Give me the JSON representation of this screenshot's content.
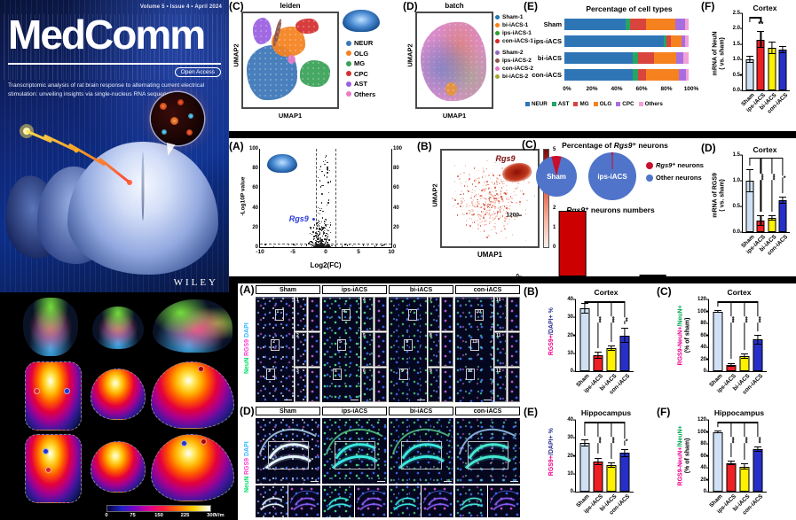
{
  "cover": {
    "issue_info": "Volume 5 • Issue 4 • April 2024",
    "journal_title": "MedComm",
    "open_access_badge": "Open Access",
    "subtitle": "Transcriptomic analysis of rat brain response to alternating current electrical stimulation: unveiling insights via single-nucleus RNA sequencing",
    "publisher": "WILEY"
  },
  "efield_scale": {
    "ticks": [
      "0",
      "75",
      "150",
      "225",
      "300"
    ],
    "unit": "V/m"
  },
  "microscopy": {
    "cortex": {
      "panel": "(A)",
      "stain_parts": [
        {
          "text": "NeuN",
          "color": "#00e06a"
        },
        {
          "text": "/",
          "color": "#f0f0f0"
        },
        {
          "text": "RGS9",
          "color": "#ff3dd4"
        },
        {
          "text": "/",
          "color": "#f0f0f0"
        },
        {
          "text": "DAPI",
          "color": "#35b6ff"
        }
      ],
      "groups": [
        {
          "name": "Sham",
          "boxes": [
            "1",
            "2",
            "3"
          ]
        },
        {
          "name": "ips-iACS",
          "boxes": [
            "4",
            "5",
            "6"
          ]
        },
        {
          "name": "bi-iACS",
          "boxes": [
            "7",
            "8",
            "9"
          ]
        },
        {
          "name": "con-iACS",
          "boxes": [
            "10",
            "11",
            "12"
          ]
        }
      ]
    },
    "hippocampus": {
      "panel": "(D)",
      "stain_parts": [
        {
          "text": "NeuN",
          "color": "#00e06a"
        },
        {
          "text": "/",
          "color": "#f0f0f0"
        },
        {
          "text": "RGS9",
          "color": "#ff3dd4"
        },
        {
          "text": "/",
          "color": "#f0f0f0"
        },
        {
          "text": "DAPI",
          "color": "#35b6ff"
        }
      ],
      "groups": [
        {
          "name": "Sham"
        },
        {
          "name": "ips-iACS"
        },
        {
          "name": "bi-iACS"
        },
        {
          "name": "con-iACS"
        }
      ]
    }
  },
  "chart_data": [
    {
      "id": "umap_leiden",
      "panel": "(C)",
      "type": "scatter",
      "title": "leiden",
      "xlabel": "UMAP1",
      "ylabel": "UMAP2",
      "legend": [
        {
          "label": "NEUR",
          "color": "#3b76b8"
        },
        {
          "label": "OLG",
          "color": "#f5821f"
        },
        {
          "label": "MG",
          "color": "#39a257"
        },
        {
          "label": "CPC",
          "color": "#d62f2f"
        },
        {
          "label": "AST",
          "color": "#9a5fe0"
        },
        {
          "label": "Others",
          "color": "#e87cc7"
        }
      ]
    },
    {
      "id": "umap_batch",
      "panel": "(D)",
      "type": "scatter",
      "title": "batch",
      "xlabel": "UMAP1",
      "ylabel": "UMAP2",
      "legend": [
        {
          "label": "Sham-1",
          "color": "#1f77b4"
        },
        {
          "label": "bi-iACS-1",
          "color": "#ff7f0e"
        },
        {
          "label": "ips-iACS-1",
          "color": "#2ca02c"
        },
        {
          "label": "con-iACS-1",
          "color": "#d62728"
        },
        {
          "label": "Sham-2",
          "color": "#9467bd",
          "gap": true
        },
        {
          "label": "ips-iACS-2",
          "color": "#8c564b"
        },
        {
          "label": "con-iACS-2",
          "color": "#e377c2"
        },
        {
          "label": "bi-iACS-2",
          "color": "#a8a832"
        }
      ]
    },
    {
      "id": "cell_types",
      "panel": "(E)",
      "type": "bar",
      "orientation": "horizontal",
      "stacked": true,
      "title": "Percentage of cell types",
      "categories": [
        "Sham",
        "ips-iACS",
        "bi-iACS",
        "con-iACS"
      ],
      "series": [
        {
          "name": "NEUR",
          "color": "#2e75b6",
          "values": [
            49,
            80,
            55,
            55
          ]
        },
        {
          "name": "AST",
          "color": "#27a567",
          "values": [
            4,
            2,
            4,
            4
          ]
        },
        {
          "name": "MG",
          "color": "#d9443c",
          "values": [
            13,
            4,
            13,
            7
          ]
        },
        {
          "name": "OLG",
          "color": "#f6821f",
          "values": [
            23,
            8,
            18,
            26
          ]
        },
        {
          "name": "CPC",
          "color": "#a86ee0",
          "values": [
            8,
            3,
            6,
            6
          ]
        },
        {
          "name": "Others",
          "color": "#f2a0d8",
          "values": [
            3,
            3,
            4,
            2
          ]
        }
      ],
      "xticks": [
        "0%",
        "20%",
        "40%",
        "60%",
        "80%",
        "100%"
      ],
      "xlim": [
        0,
        100
      ]
    },
    {
      "id": "neun_cortex",
      "panel": "(F)",
      "type": "bar",
      "title": "Cortex",
      "ylab_lines": [
        [
          {
            "text": "mRNA of NeuN"
          }
        ],
        [
          {
            "text": "( vs. sham)"
          }
        ]
      ],
      "categories": [
        "Sham",
        "ips-iACS",
        "bi-iACS",
        "con-iACS"
      ],
      "values": [
        1.0,
        1.65,
        1.37,
        1.32
      ],
      "errors": [
        0.12,
        0.28,
        0.2,
        0.12
      ],
      "colors": [
        "#cfe0f4",
        "#ed2024",
        "#fff100",
        "#2630c8"
      ],
      "sig": [
        "",
        "**",
        "",
        ""
      ],
      "bracket": "pair",
      "ylim": [
        0,
        2.5
      ],
      "yticks": [
        "0.0",
        "0.5",
        "1.0",
        "1.5",
        "2.0",
        "2.5"
      ]
    },
    {
      "id": "volcano",
      "panel": "(A)",
      "type": "scatter",
      "xlabel": "Log2(FC)",
      "ylabel": "-Log10P value",
      "xticks": [
        "-10",
        "-5",
        "0",
        "5",
        "10"
      ],
      "xlim": [
        -10,
        10
      ],
      "yticks": [
        "0",
        "20",
        "40",
        "60",
        "80",
        "100"
      ],
      "ylim": [
        0,
        100
      ],
      "annotation": {
        "text": "Rgs9",
        "italic": true,
        "color": "#2a3bd8",
        "x": -2,
        "y": 27
      }
    },
    {
      "id": "rgs9_umap",
      "panel": "(B)",
      "type": "scatter",
      "xlabel": "UMAP1",
      "ylabel": "UMAP2",
      "annotation": {
        "text": "Rgs9",
        "italic": true,
        "color": "#7a0c0c"
      },
      "colorbar": {
        "ticks": [
          "0",
          "1",
          "2",
          "3",
          "4",
          "5"
        ],
        "low": "#f8f1ed",
        "high": "#67000d"
      }
    },
    {
      "id": "rgs9_pies",
      "panel": "(C)",
      "type": "pie",
      "title_parts": [
        {
          "text": "Percentage of "
        },
        {
          "text": "Rgs9",
          "italic": true
        },
        {
          "text": "⁺ neurons"
        }
      ],
      "pies": [
        {
          "label": "Sham",
          "rgs9_pct": 8
        },
        {
          "label": "ips-iACS",
          "rgs9_pct": 1
        }
      ],
      "slice_colors": {
        "rgs9": "#c8102e",
        "other": "#4f74c9"
      },
      "legend": [
        {
          "label_parts": [
            {
              "text": "Rgs9",
              "italic": true
            },
            {
              "text": "⁺ neurons"
            }
          ],
          "color": "#c8102e"
        },
        {
          "label_parts": [
            {
              "text": "Other neurons"
            }
          ],
          "color": "#4f74c9"
        }
      ]
    },
    {
      "id": "rgs9_numbers",
      "type": "bar",
      "title_parts": [
        {
          "text": "Rgs9",
          "italic": true
        },
        {
          "text": "⁺ neurons numbers"
        }
      ],
      "categories": [
        "Sham",
        "ips-iACS"
      ],
      "values": [
        1300,
        15
      ],
      "colors": [
        "#cc0000",
        "#cc0000"
      ],
      "ylim": [
        0,
        1400
      ],
      "yticks": [
        "0",
        "1200"
      ],
      "flat_cats": true
    },
    {
      "id": "rgs9_cortex_mrna",
      "panel": "(D)",
      "type": "bar",
      "title": "Cortex",
      "ylab_lines": [
        [
          {
            "text": "mRNA of RGS9"
          }
        ],
        [
          {
            "text": "( vs. sham)"
          }
        ]
      ],
      "categories": [
        "Sham",
        "ips-iACS",
        "bi-iACS",
        "con-iACS"
      ],
      "values": [
        1.0,
        0.22,
        0.28,
        0.62
      ],
      "errors": [
        0.22,
        0.1,
        0.05,
        0.07
      ],
      "colors": [
        "#cfe0f4",
        "#ed2024",
        "#fff100",
        "#2630c8"
      ],
      "sig": [
        "",
        "***",
        "***",
        "*"
      ],
      "bracket": "fan",
      "ylim": [
        0,
        1.5
      ],
      "yticks": [
        "0.0",
        "0.5",
        "1.0",
        "1.5"
      ]
    },
    {
      "id": "rgs9_dapi_cortex",
      "panel": "(B)",
      "type": "bar",
      "title": "Cortex",
      "ylab_lines": [
        [
          {
            "text": "RGS9+",
            "color": "#ec008c"
          },
          {
            "text": "/DAPI+ %",
            "color": "#2e3192"
          }
        ]
      ],
      "categories": [
        "Sham",
        "ips-iACS",
        "bi-iACS",
        "con-iACS"
      ],
      "values": [
        35,
        9,
        13,
        20
      ],
      "errors": [
        3,
        2,
        1.5,
        4
      ],
      "colors": [
        "#cfe0f4",
        "#ed2024",
        "#fff100",
        "#2630c8"
      ],
      "sig": [
        "",
        "***",
        "***",
        "**"
      ],
      "bracket": "fan",
      "ylim": [
        0,
        40
      ],
      "yticks": [
        "0",
        "10",
        "20",
        "30",
        "40"
      ]
    },
    {
      "id": "rgs9_neun_cortex",
      "panel": "(C)",
      "type": "bar",
      "title": "Cortex",
      "ylab_lines": [
        [
          {
            "text": "RGS9-NeuN+",
            "color": "#ec008c"
          },
          {
            "text": "/NeuN+",
            "color": "#00a651"
          }
        ],
        [
          {
            "text": "(% of sham)"
          }
        ]
      ],
      "categories": [
        "Sham",
        "ips-iACS",
        "bi-iACS",
        "con-iACS"
      ],
      "values": [
        100,
        11,
        25,
        53
      ],
      "errors": [
        2,
        3,
        4,
        8
      ],
      "colors": [
        "#cfe0f4",
        "#ed2024",
        "#fff100",
        "#2630c8"
      ],
      "sig": [
        "",
        "***",
        "***",
        "***"
      ],
      "bracket": "fan",
      "ylim": [
        0,
        120
      ],
      "yticks": [
        "0",
        "20",
        "40",
        "60",
        "80",
        "100",
        "120"
      ]
    },
    {
      "id": "rgs9_dapi_hippo",
      "panel": "(E)",
      "type": "bar",
      "title": "Hippocampus",
      "ylab_lines": [
        [
          {
            "text": "RGS9+",
            "color": "#ec008c"
          },
          {
            "text": "/DAPI+ %",
            "color": "#2e3192"
          }
        ]
      ],
      "categories": [
        "Sham",
        "ips-iACS",
        "bi-iACS",
        "con-iACS"
      ],
      "values": [
        27,
        17,
        15,
        21.5
      ],
      "errors": [
        2,
        2,
        1.5,
        2
      ],
      "colors": [
        "#cfe0f4",
        "#ed2024",
        "#fff100",
        "#2630c8"
      ],
      "sig": [
        "",
        "***",
        "***",
        "*"
      ],
      "bracket": "fan",
      "ylim": [
        0,
        40
      ],
      "yticks": [
        "0",
        "10",
        "20",
        "30",
        "40"
      ]
    },
    {
      "id": "rgs9_neun_hippo",
      "panel": "(F)",
      "type": "bar",
      "title": "Hippocampus",
      "ylab_lines": [
        [
          {
            "text": "RGS9-NeuN+",
            "color": "#ec008c"
          },
          {
            "text": "/NeuN+",
            "color": "#00a651"
          }
        ],
        [
          {
            "text": "(% of sham)"
          }
        ]
      ],
      "categories": [
        "Sham",
        "ips-iACS",
        "bi-iACS",
        "con-iACS"
      ],
      "values": [
        100,
        48,
        42,
        71
      ],
      "errors": [
        2,
        4,
        5,
        5
      ],
      "colors": [
        "#cfe0f4",
        "#ed2024",
        "#fff100",
        "#2630c8"
      ],
      "sig": [
        "",
        "***",
        "***",
        "***"
      ],
      "bracket": "fan",
      "ylim": [
        0,
        120
      ],
      "yticks": [
        "0",
        "20",
        "40",
        "60",
        "80",
        "100",
        "120"
      ]
    }
  ]
}
